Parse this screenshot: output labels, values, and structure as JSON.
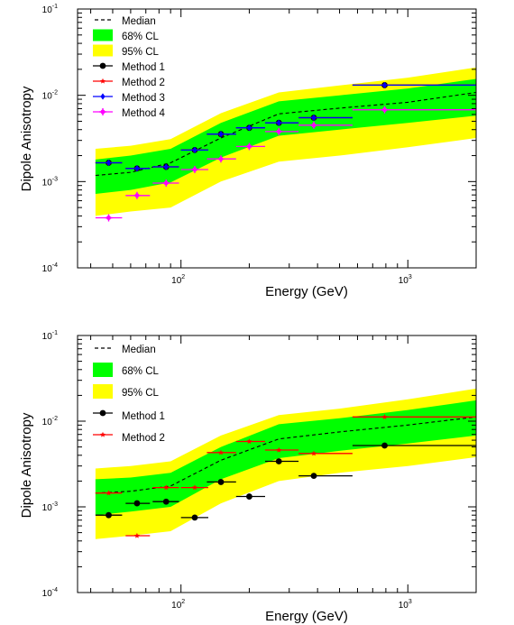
{
  "colors": {
    "band68": "#00ff00",
    "band95": "#ffff00",
    "median": "#000000",
    "method1": "#000000",
    "method2": "#ff0000",
    "method3": "#0000ff",
    "method4": "#ff00ff",
    "errorbar": "#555555"
  },
  "chart_data": [
    {
      "type": "line",
      "title": "",
      "xlabel": "Energy (GeV)",
      "ylabel": "Dipole Anisotropy",
      "xscale": "log",
      "yscale": "log",
      "xlim": [
        35,
        2000
      ],
      "ylim": [
        0.0001,
        0.1
      ],
      "xticks": [
        {
          "value": 100,
          "base": "10",
          "exp": "2"
        },
        {
          "value": 1000,
          "base": "10",
          "exp": "3"
        }
      ],
      "yticks": [
        {
          "value": 0.0001,
          "base": "10",
          "exp": "-4"
        },
        {
          "value": 0.001,
          "base": "10",
          "exp": "-3"
        },
        {
          "value": 0.01,
          "base": "10",
          "exp": "-2"
        },
        {
          "value": 0.1,
          "base": "10",
          "exp": "-1"
        }
      ],
      "legend": [
        "Median",
        "68% CL",
        "95% CL",
        "Method 1",
        "Method 2",
        "Method 3",
        "Method 4"
      ],
      "legend_position": "top-left",
      "median": {
        "x": [
          42,
          60,
          90,
          150,
          270,
          500,
          1000,
          2000
        ],
        "y": [
          0.00118,
          0.00128,
          0.00165,
          0.0032,
          0.0061,
          0.0071,
          0.0083,
          0.0108
        ]
      },
      "band68": {
        "x": [
          42,
          60,
          90,
          150,
          270,
          500,
          1000,
          2000
        ],
        "lower": [
          0.00072,
          0.0008,
          0.00098,
          0.0019,
          0.0034,
          0.004,
          0.0048,
          0.0058
        ],
        "upper": [
          0.0018,
          0.002,
          0.0024,
          0.0048,
          0.0085,
          0.01,
          0.012,
          0.0155
        ]
      },
      "band95": {
        "x": [
          42,
          60,
          90,
          150,
          270,
          500,
          1000,
          2000
        ],
        "lower": [
          0.0004,
          0.00045,
          0.0005,
          0.001,
          0.0017,
          0.002,
          0.0025,
          0.0032
        ],
        "upper": [
          0.0024,
          0.0026,
          0.0031,
          0.0062,
          0.0108,
          0.013,
          0.016,
          0.021
        ]
      },
      "series": [
        {
          "name": "Method 1",
          "x": [
            48,
            64,
            86,
            115,
            150,
            200,
            270,
            385,
            790
          ],
          "y": [
            0.00165,
            0.00142,
            0.00148,
            0.00232,
            0.00355,
            0.0042,
            0.0048,
            0.0055,
            0.0131
          ],
          "xerr_low": [
            42,
            57,
            75,
            100,
            130,
            175,
            235,
            330,
            570
          ],
          "xerr_high": [
            55,
            73,
            98,
            132,
            175,
            235,
            330,
            570,
            2000
          ]
        },
        {
          "name": "Method 2",
          "x": [
            48,
            64,
            86,
            115,
            150,
            200,
            270,
            385,
            790
          ],
          "y": [
            0.00165,
            0.00142,
            0.00148,
            0.00232,
            0.00355,
            0.0042,
            0.0048,
            0.0055,
            0.0131
          ],
          "xerr_low": [
            42,
            57,
            75,
            100,
            130,
            175,
            235,
            330,
            570
          ],
          "xerr_high": [
            55,
            73,
            98,
            132,
            175,
            235,
            330,
            570,
            2000
          ]
        },
        {
          "name": "Method 3",
          "x": [
            48,
            64,
            86,
            115,
            150,
            200,
            270,
            385,
            790
          ],
          "y": [
            0.00165,
            0.00142,
            0.00148,
            0.00232,
            0.00355,
            0.0042,
            0.0048,
            0.0055,
            0.0131
          ],
          "xerr_low": [
            42,
            57,
            75,
            100,
            130,
            175,
            235,
            330,
            570
          ],
          "xerr_high": [
            55,
            73,
            98,
            132,
            175,
            235,
            330,
            570,
            2000
          ]
        },
        {
          "name": "Method 4",
          "x": [
            48,
            64,
            86,
            115,
            150,
            200,
            270,
            385,
            790
          ],
          "y": [
            0.00038,
            0.00069,
            0.00096,
            0.00138,
            0.00183,
            0.00255,
            0.0038,
            0.0045,
            0.0068
          ],
          "xerr_low": [
            42,
            57,
            75,
            100,
            130,
            175,
            235,
            330,
            570
          ],
          "xerr_high": [
            55,
            73,
            98,
            132,
            175,
            235,
            330,
            570,
            2000
          ]
        }
      ]
    },
    {
      "type": "line",
      "title": "",
      "xlabel": "Energy (GeV)",
      "ylabel": "Dipole Anisotropy",
      "xscale": "log",
      "yscale": "log",
      "xlim": [
        35,
        2000
      ],
      "ylim": [
        0.0001,
        0.1
      ],
      "xticks": [
        {
          "value": 100,
          "base": "10",
          "exp": "2"
        },
        {
          "value": 1000,
          "base": "10",
          "exp": "3"
        }
      ],
      "yticks": [
        {
          "value": 0.0001,
          "base": "10",
          "exp": "-4"
        },
        {
          "value": 0.001,
          "base": "10",
          "exp": "-3"
        },
        {
          "value": 0.01,
          "base": "10",
          "exp": "-2"
        },
        {
          "value": 0.1,
          "base": "10",
          "exp": "-1"
        }
      ],
      "legend": [
        "Median",
        "68% CL",
        "95% CL",
        "Method 1",
        "Method 2"
      ],
      "legend_position": "top-left",
      "median": {
        "x": [
          42,
          60,
          90,
          150,
          270,
          500,
          1000,
          2000
        ],
        "y": [
          0.00145,
          0.00152,
          0.00175,
          0.0035,
          0.0062,
          0.0075,
          0.009,
          0.0112
        ]
      },
      "band68": {
        "x": [
          42,
          60,
          90,
          150,
          270,
          500,
          1000,
          2000
        ],
        "lower": [
          0.0008,
          0.00088,
          0.001,
          0.0021,
          0.0037,
          0.0045,
          0.0055,
          0.0068
        ],
        "upper": [
          0.0021,
          0.0022,
          0.0025,
          0.005,
          0.0092,
          0.0108,
          0.0135,
          0.0175
        ]
      },
      "band95": {
        "x": [
          42,
          60,
          90,
          150,
          270,
          500,
          1000,
          2000
        ],
        "lower": [
          0.00042,
          0.00046,
          0.00052,
          0.0011,
          0.002,
          0.0025,
          0.003,
          0.0038
        ],
        "upper": [
          0.0028,
          0.003,
          0.0034,
          0.0068,
          0.0118,
          0.014,
          0.018,
          0.024
        ]
      },
      "series": [
        {
          "name": "Method 1",
          "x": [
            48,
            64,
            86,
            115,
            150,
            200,
            270,
            385,
            790
          ],
          "y": [
            0.0008,
            0.0011,
            0.00115,
            0.00075,
            0.00195,
            0.00132,
            0.0034,
            0.0023,
            0.0052
          ],
          "xerr_low": [
            42,
            57,
            75,
            100,
            130,
            175,
            235,
            330,
            570
          ],
          "xerr_high": [
            55,
            73,
            98,
            132,
            175,
            235,
            330,
            570,
            2000
          ]
        },
        {
          "name": "Method 2",
          "x": [
            48,
            64,
            86,
            115,
            150,
            200,
            270,
            385,
            790
          ],
          "y": [
            0.00145,
            0.00046,
            0.00168,
            0.00168,
            0.0043,
            0.0058,
            0.0046,
            0.0042,
            0.0112
          ],
          "xerr_low": [
            42,
            57,
            75,
            100,
            130,
            175,
            235,
            330,
            570
          ],
          "xerr_high": [
            55,
            73,
            98,
            132,
            175,
            235,
            330,
            570,
            2000
          ]
        }
      ]
    }
  ]
}
